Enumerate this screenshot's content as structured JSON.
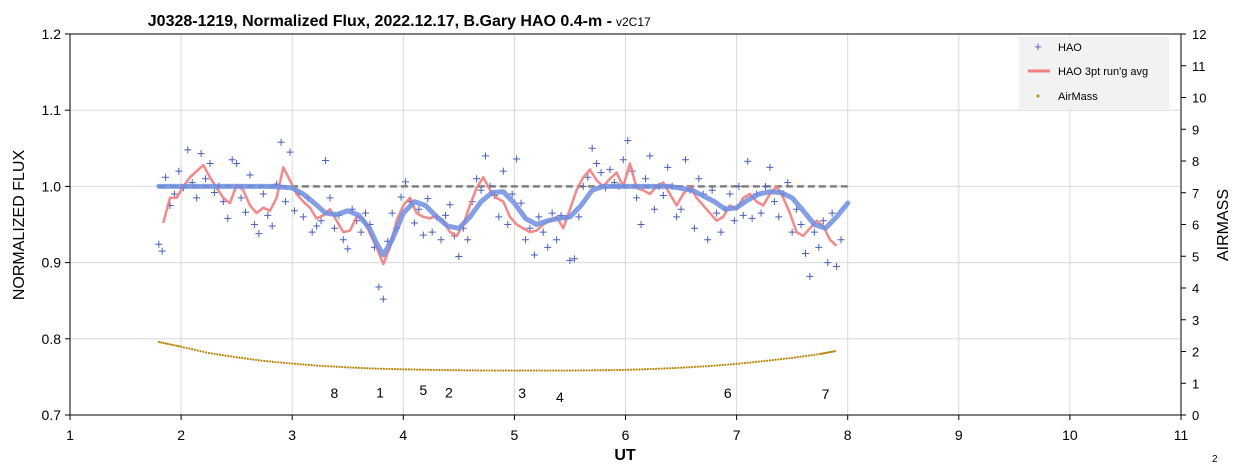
{
  "chart_data": {
    "type": "scatter",
    "title": "J0328-1219, Normalized Flux, 2022.12.17, B.Gary HAO 0.4-m - ",
    "version_tag": "v2C17",
    "xlabel": "UT",
    "ylabel": "NORMALIZED FLUX",
    "y2label": "AIRMASS",
    "xlim": [
      1,
      11
    ],
    "ylim": [
      0.7,
      1.2
    ],
    "y2lim": [
      0,
      12
    ],
    "x_ticks": [
      "1",
      "2",
      "3",
      "4",
      "5",
      "6",
      "7",
      "8",
      "9",
      "10",
      "11"
    ],
    "y_ticks": [
      "0.7",
      "0.8",
      "0.9",
      "1.0",
      "1.1",
      "1.2"
    ],
    "y2_ticks": [
      "0",
      "1",
      "2",
      "3",
      "4",
      "5",
      "6",
      "7",
      "8",
      "9",
      "10",
      "11",
      "12"
    ],
    "grid": true,
    "legend_position": "top-right",
    "legend": [
      {
        "label": "HAO",
        "marker": "+",
        "color": "#4a5fc1"
      },
      {
        "label": "HAO 3pt run'g avg",
        "marker": "line",
        "color": "#f08080"
      },
      {
        "label": "AirMass",
        "marker": "dot",
        "color": "#b8860b"
      }
    ],
    "series": [
      {
        "name": "HAO",
        "style": "scatter-plus",
        "color": "#4a5fc1",
        "x": [
          1.8,
          1.83,
          1.86,
          1.9,
          1.94,
          1.98,
          2.02,
          2.06,
          2.1,
          2.14,
          2.18,
          2.22,
          2.26,
          2.3,
          2.34,
          2.38,
          2.42,
          2.46,
          2.5,
          2.54,
          2.58,
          2.62,
          2.66,
          2.7,
          2.74,
          2.78,
          2.82,
          2.86,
          2.9,
          2.94,
          2.98,
          3.02,
          3.06,
          3.1,
          3.14,
          3.18,
          3.22,
          3.26,
          3.3,
          3.34,
          3.38,
          3.42,
          3.46,
          3.5,
          3.54,
          3.58,
          3.62,
          3.66,
          3.7,
          3.74,
          3.78,
          3.82,
          3.86,
          3.9,
          3.94,
          3.98,
          4.02,
          4.06,
          4.1,
          4.14,
          4.18,
          4.22,
          4.26,
          4.3,
          4.34,
          4.38,
          4.42,
          4.46,
          4.5,
          4.54,
          4.58,
          4.62,
          4.66,
          4.7,
          4.74,
          4.78,
          4.82,
          4.86,
          4.9,
          4.94,
          4.98,
          5.02,
          5.06,
          5.1,
          5.14,
          5.18,
          5.22,
          5.26,
          5.3,
          5.34,
          5.38,
          5.42,
          5.46,
          5.5,
          5.54,
          5.58,
          5.62,
          5.66,
          5.7,
          5.74,
          5.78,
          5.82,
          5.86,
          5.9,
          5.94,
          5.98,
          6.02,
          6.06,
          6.1,
          6.14,
          6.18,
          6.22,
          6.26,
          6.3,
          6.34,
          6.38,
          6.42,
          6.46,
          6.5,
          6.54,
          6.58,
          6.62,
          6.66,
          6.7,
          6.74,
          6.78,
          6.82,
          6.86,
          6.9,
          6.94,
          6.98,
          7.02,
          7.06,
          7.1,
          7.14,
          7.18,
          7.22,
          7.26,
          7.3,
          7.34,
          7.38,
          7.42,
          7.46,
          7.5,
          7.54,
          7.58,
          7.62,
          7.66,
          7.7,
          7.74,
          7.78,
          7.82,
          7.86,
          7.9,
          7.94
        ],
        "y": [
          0.924,
          0.915,
          1.012,
          0.975,
          0.99,
          1.02,
          0.998,
          1.048,
          1.005,
          0.985,
          1.043,
          1.01,
          1.03,
          0.992,
          1.0,
          0.98,
          0.958,
          1.035,
          1.03,
          0.985,
          0.966,
          1.015,
          0.95,
          0.938,
          0.99,
          0.962,
          0.948,
          1.003,
          1.058,
          0.98,
          1.045,
          0.968,
          0.99,
          0.96,
          0.985,
          0.94,
          0.948,
          0.955,
          1.034,
          0.985,
          0.945,
          0.962,
          0.93,
          0.918,
          0.97,
          0.955,
          0.94,
          0.965,
          0.95,
          0.92,
          0.868,
          0.852,
          0.928,
          0.965,
          0.945,
          0.986,
          1.006,
          0.98,
          0.952,
          0.97,
          0.936,
          0.984,
          0.94,
          0.96,
          0.93,
          0.962,
          0.976,
          0.935,
          0.908,
          0.945,
          0.93,
          0.98,
          1.01,
          0.995,
          1.04,
          1.0,
          0.988,
          0.96,
          1.02,
          0.95,
          0.99,
          1.036,
          0.978,
          0.93,
          0.945,
          0.91,
          0.96,
          0.94,
          0.92,
          0.965,
          0.93,
          0.962,
          0.958,
          0.903,
          0.905,
          0.96,
          1.0,
          1.012,
          1.05,
          1.03,
          1.018,
          0.998,
          1.022,
          1.005,
          1.0,
          1.035,
          1.06,
          1.02,
          0.985,
          0.95,
          1.01,
          1.04,
          0.97,
          1.0,
          0.988,
          1.025,
          1.0,
          0.96,
          0.97,
          1.035,
          0.995,
          0.945,
          1.01,
          0.99,
          0.93,
          0.995,
          0.965,
          0.94,
          0.97,
          0.99,
          0.955,
          1.0,
          0.962,
          1.033,
          0.958,
          0.99,
          0.965,
          1.0,
          1.025,
          0.98,
          0.96,
          0.99,
          1.005,
          0.94,
          0.97,
          0.95,
          0.912,
          0.882,
          0.94,
          0.92,
          0.955,
          0.9,
          0.965,
          0.895,
          0.93
        ],
        "ymin": 0.852,
        "ymax": 1.06
      },
      {
        "name": "HAO 3pt run'g avg",
        "style": "line",
        "color": "#f08080",
        "x": [
          1.84,
          1.9,
          1.96,
          2.02,
          2.08,
          2.14,
          2.2,
          2.26,
          2.32,
          2.38,
          2.44,
          2.5,
          2.56,
          2.62,
          2.68,
          2.74,
          2.8,
          2.86,
          2.92,
          2.98,
          3.04,
          3.1,
          3.16,
          3.22,
          3.28,
          3.34,
          3.4,
          3.46,
          3.52,
          3.58,
          3.64,
          3.7,
          3.76,
          3.82,
          3.88,
          3.94,
          4.0,
          4.06,
          4.12,
          4.18,
          4.24,
          4.3,
          4.36,
          4.42,
          4.48,
          4.54,
          4.6,
          4.66,
          4.72,
          4.78,
          4.84,
          4.9,
          4.96,
          5.02,
          5.08,
          5.14,
          5.2,
          5.26,
          5.32,
          5.38,
          5.44,
          5.5,
          5.56,
          5.62,
          5.68,
          5.74,
          5.8,
          5.86,
          5.92,
          5.98,
          6.04,
          6.1,
          6.16,
          6.22,
          6.28,
          6.34,
          6.4,
          6.46,
          6.52,
          6.58,
          6.64,
          6.7,
          6.76,
          6.82,
          6.88,
          6.94,
          7.0,
          7.06,
          7.12,
          7.18,
          7.24,
          7.3,
          7.36,
          7.42,
          7.48,
          7.54,
          7.6,
          7.66,
          7.72,
          7.78,
          7.84,
          7.9
        ],
        "y": [
          0.952,
          0.985,
          0.985,
          1.0,
          1.012,
          1.02,
          1.028,
          1.012,
          0.998,
          0.985,
          0.978,
          1.002,
          0.995,
          0.975,
          0.965,
          0.972,
          0.968,
          0.985,
          1.025,
          1.008,
          0.99,
          0.98,
          0.972,
          0.958,
          0.962,
          0.97,
          0.955,
          0.94,
          0.942,
          0.96,
          0.958,
          0.938,
          0.92,
          0.898,
          0.92,
          0.955,
          0.975,
          0.985,
          0.965,
          0.96,
          0.958,
          0.962,
          0.955,
          0.94,
          0.935,
          0.95,
          0.975,
          0.998,
          1.012,
          0.995,
          0.985,
          0.98,
          0.96,
          0.95,
          0.945,
          0.94,
          0.942,
          0.95,
          0.955,
          0.96,
          0.945,
          0.97,
          0.995,
          1.012,
          1.022,
          1.008,
          1.0,
          1.01,
          1.018,
          1.0,
          1.03,
          0.998,
          0.995,
          0.99,
          1.0,
          1.005,
          0.99,
          0.975,
          0.99,
          1.0,
          0.985,
          0.975,
          0.965,
          0.955,
          0.96,
          0.975,
          0.97,
          0.985,
          0.99,
          0.98,
          0.975,
          0.99,
          1.0,
          0.985,
          0.965,
          0.94,
          0.935,
          0.945,
          0.955,
          0.948,
          0.93,
          0.922
        ]
      },
      {
        "name": "Trend",
        "style": "line-thick",
        "color": "#6f8ee0",
        "x": [
          1.8,
          2.0,
          2.4,
          2.8,
          3.0,
          3.1,
          3.2,
          3.3,
          3.4,
          3.5,
          3.6,
          3.7,
          3.76,
          3.82,
          3.9,
          4.0,
          4.1,
          4.2,
          4.3,
          4.4,
          4.5,
          4.6,
          4.7,
          4.8,
          4.9,
          5.0,
          5.1,
          5.2,
          5.3,
          5.4,
          5.5,
          5.6,
          5.7,
          5.8,
          6.0,
          6.2,
          6.4,
          6.6,
          6.8,
          6.9,
          7.0,
          7.1,
          7.2,
          7.3,
          7.4,
          7.5,
          7.6,
          7.7,
          7.8,
          7.9,
          8.0
        ],
        "y": [
          1.0,
          1.0,
          1.0,
          1.0,
          0.998,
          0.99,
          0.978,
          0.965,
          0.963,
          0.968,
          0.962,
          0.944,
          0.925,
          0.91,
          0.93,
          0.965,
          0.98,
          0.975,
          0.96,
          0.948,
          0.945,
          0.96,
          0.98,
          0.992,
          0.993,
          0.978,
          0.958,
          0.95,
          0.955,
          0.958,
          0.96,
          0.975,
          0.995,
          1.0,
          1.0,
          1.0,
          1.0,
          0.995,
          0.98,
          0.97,
          0.972,
          0.982,
          0.99,
          0.993,
          0.992,
          0.985,
          0.968,
          0.95,
          0.945,
          0.96,
          0.978
        ]
      },
      {
        "name": "Reference",
        "style": "dashed",
        "color": "#808080",
        "x": [
          1.8,
          8.0
        ],
        "y": [
          1.0,
          1.0
        ]
      },
      {
        "name": "AirMass",
        "style": "dots-secondary",
        "color": "#b8860b",
        "x": [
          1.8,
          2.0,
          2.25,
          2.5,
          2.75,
          3.0,
          3.25,
          3.5,
          3.75,
          4.0,
          4.25,
          4.5,
          4.75,
          5.0,
          5.25,
          5.5,
          5.75,
          6.0,
          6.25,
          6.5,
          6.75,
          7.0,
          7.25,
          7.5,
          7.75,
          7.9
        ],
        "y": [
          2.3,
          2.15,
          1.95,
          1.82,
          1.7,
          1.62,
          1.55,
          1.5,
          1.46,
          1.44,
          1.42,
          1.41,
          1.4,
          1.4,
          1.4,
          1.4,
          1.41,
          1.42,
          1.45,
          1.49,
          1.54,
          1.61,
          1.7,
          1.8,
          1.92,
          2.02
        ]
      }
    ],
    "annotations": [
      {
        "text": "8",
        "x": 3.38,
        "y": 0.722
      },
      {
        "text": "1",
        "x": 3.79,
        "y": 0.723
      },
      {
        "text": "5",
        "x": 4.18,
        "y": 0.726
      },
      {
        "text": "2",
        "x": 4.41,
        "y": 0.723
      },
      {
        "text": "3",
        "x": 5.07,
        "y": 0.722
      },
      {
        "text": "4",
        "x": 5.41,
        "y": 0.717
      },
      {
        "text": "6",
        "x": 6.92,
        "y": 0.722
      },
      {
        "text": "7",
        "x": 7.8,
        "y": 0.721
      }
    ]
  },
  "page_number": "2"
}
